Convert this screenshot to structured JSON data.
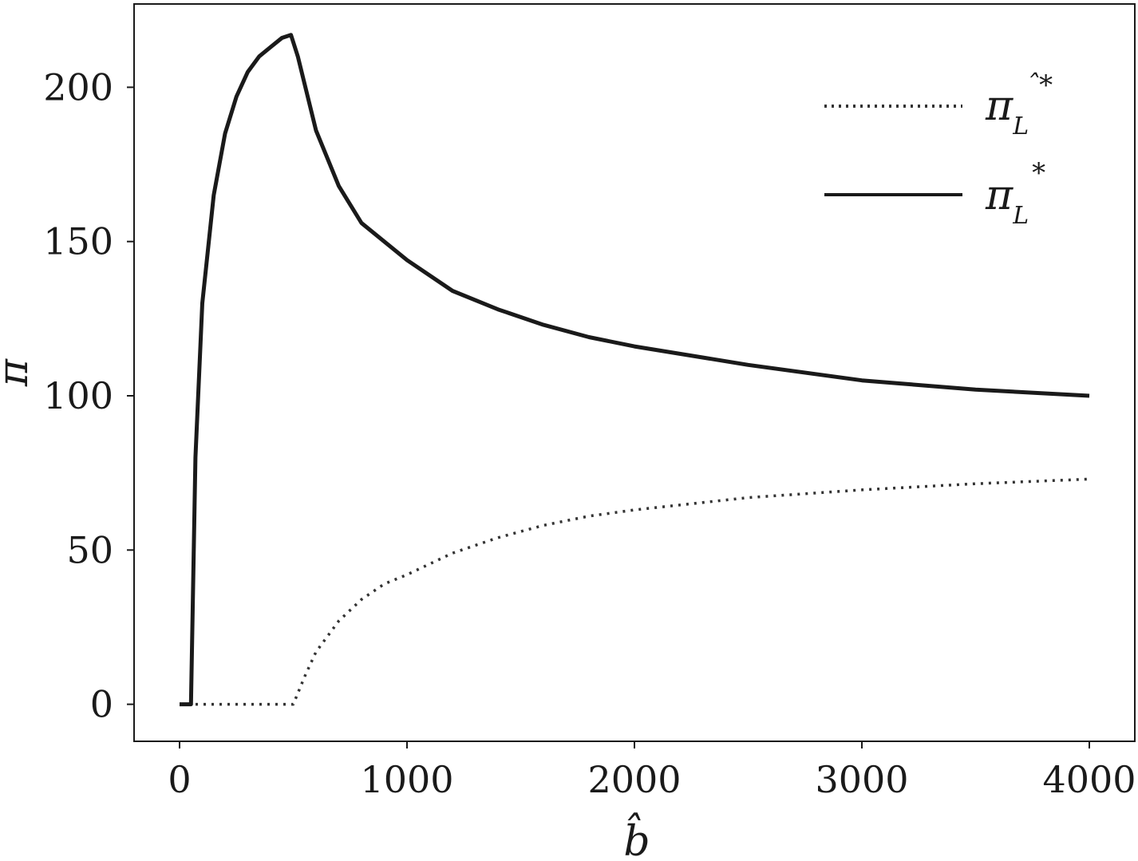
{
  "chart_data": {
    "type": "line",
    "xlabel": "b̂",
    "ylabel": "π",
    "xlim": [
      -200,
      4200
    ],
    "ylim": [
      -12,
      227
    ],
    "xticks": [
      0,
      1000,
      2000,
      3000,
      4000
    ],
    "xtick_labels": [
      "0",
      "1000",
      "2000",
      "3000",
      "4000"
    ],
    "yticks": [
      0,
      50,
      100,
      150,
      200
    ],
    "ytick_labels": [
      "0",
      "50",
      "100",
      "150",
      "200"
    ],
    "grid": false,
    "legend_position": "top-right",
    "series": [
      {
        "name": "π_L^ˆ*",
        "legend_symbol": "π",
        "legend_subscript": "L",
        "legend_superscript": "ˆ*",
        "style": "dotted",
        "color": "#333333",
        "x": [
          0,
          100,
          200,
          300,
          400,
          500,
          550,
          600,
          700,
          800,
          900,
          1000,
          1200,
          1400,
          1600,
          1800,
          2000,
          2500,
          3000,
          3500,
          4000
        ],
        "y": [
          0,
          0,
          0,
          0,
          0,
          0,
          9,
          17,
          27,
          34,
          39,
          42,
          49,
          54,
          58,
          61,
          63,
          67,
          69.5,
          71.5,
          73
        ]
      },
      {
        "name": "π_L*",
        "legend_symbol": "π",
        "legend_subscript": "L",
        "legend_superscript": "*",
        "style": "solid",
        "color": "#1a1a1a",
        "x": [
          0,
          40,
          50,
          70,
          100,
          150,
          200,
          250,
          300,
          350,
          400,
          450,
          490,
          520,
          600,
          700,
          800,
          1000,
          1200,
          1400,
          1600,
          1800,
          2000,
          2500,
          3000,
          3500,
          4000
        ],
        "y": [
          0,
          0,
          0,
          80,
          130,
          165,
          185,
          197,
          205,
          210,
          213,
          216,
          217,
          210,
          186,
          168,
          156,
          144,
          134,
          128,
          123,
          119,
          116,
          110,
          105,
          102,
          100
        ]
      }
    ]
  }
}
